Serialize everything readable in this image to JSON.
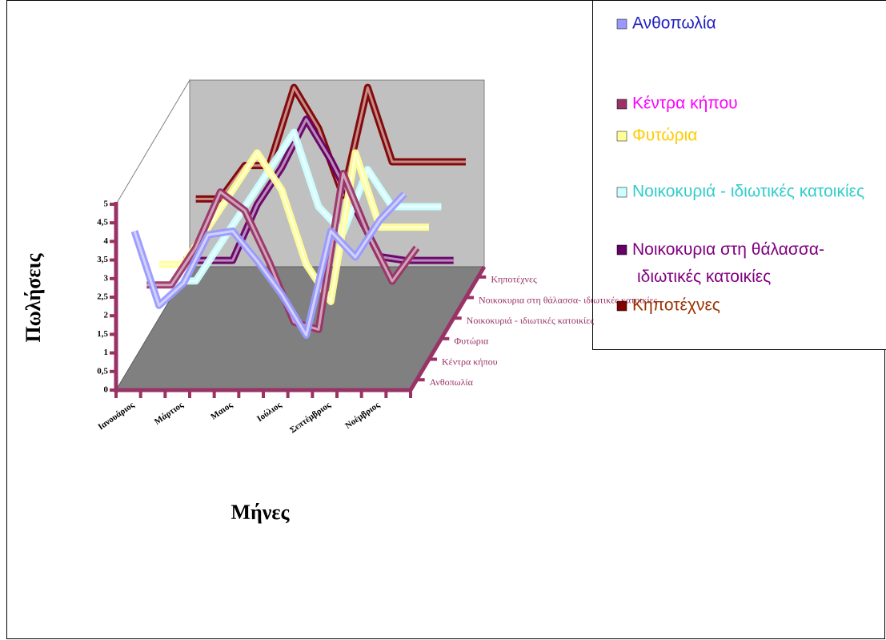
{
  "chart_data": {
    "type": "line3d",
    "y_label": "Πωλήσεις",
    "x_label": "Μήνες",
    "categories": [
      "Ιανουάριος",
      null,
      "Μάρτιος",
      null,
      "Μαιος",
      null,
      "Ιούλιος",
      null,
      "Σεπτέμβριος",
      null,
      "Νοέμβριος",
      null
    ],
    "ylim": [
      0,
      5
    ],
    "yticks": [
      0,
      {
        "value": 0.5,
        "label": "0,5"
      },
      1,
      {
        "value": 1.5,
        "label": "1,5"
      },
      2,
      {
        "value": 2.5,
        "label": "2,5"
      },
      3,
      {
        "value": 3.5,
        "label": "3,5"
      },
      4,
      {
        "value": 4.5,
        "label": "4,5"
      },
      5
    ],
    "series": [
      {
        "name": "Ανθοπωλία",
        "color": "#9999ff",
        "legend_text_color": "#1f1fbf",
        "values": [
          4,
          2,
          2.6,
          3.9,
          4,
          3.2,
          2.3,
          1.2,
          4,
          3.3,
          4.3,
          5
        ]
      },
      {
        "name": "Κέντρα κήπου",
        "color": "#993366",
        "legend_text_color": "#ff00ff",
        "values": [
          2,
          2,
          3,
          4.5,
          4,
          2.6,
          1,
          0.8,
          5,
          3.4,
          2.1,
          3
        ]
      },
      {
        "name": "Φυτώρια",
        "color": "#ffff99",
        "legend_text_color": "#ffcc00",
        "values": [
          2,
          2,
          3,
          4,
          5,
          4,
          2,
          1,
          5,
          3,
          3,
          3
        ]
      },
      {
        "name": "Νοικοκυριά - ιδιωτικές κατοικίες",
        "color": "#ccffff",
        "legend_text_color": "#33cccc",
        "values": [
          1,
          1,
          2,
          3,
          4,
          5,
          3,
          2.3,
          4,
          3,
          3,
          3
        ]
      },
      {
        "name": "Νοικοκυρια στη θάλασσα- ιδιωτικές κατοικίες",
        "color": "#660066",
        "legend_text_color": "#800080",
        "values": [
          1,
          1,
          1,
          2.5,
          3.5,
          4.8,
          3.7,
          2.4,
          1.1,
          1,
          1,
          1
        ]
      },
      {
        "name": "Κηποτέχνες",
        "color": "#800000",
        "legend_text_color": "#993300",
        "values": [
          2.1,
          2.1,
          3,
          3,
          5.1,
          4,
          2.2,
          5.1,
          3.1,
          3.1,
          3.1,
          3.1
        ]
      }
    ]
  }
}
